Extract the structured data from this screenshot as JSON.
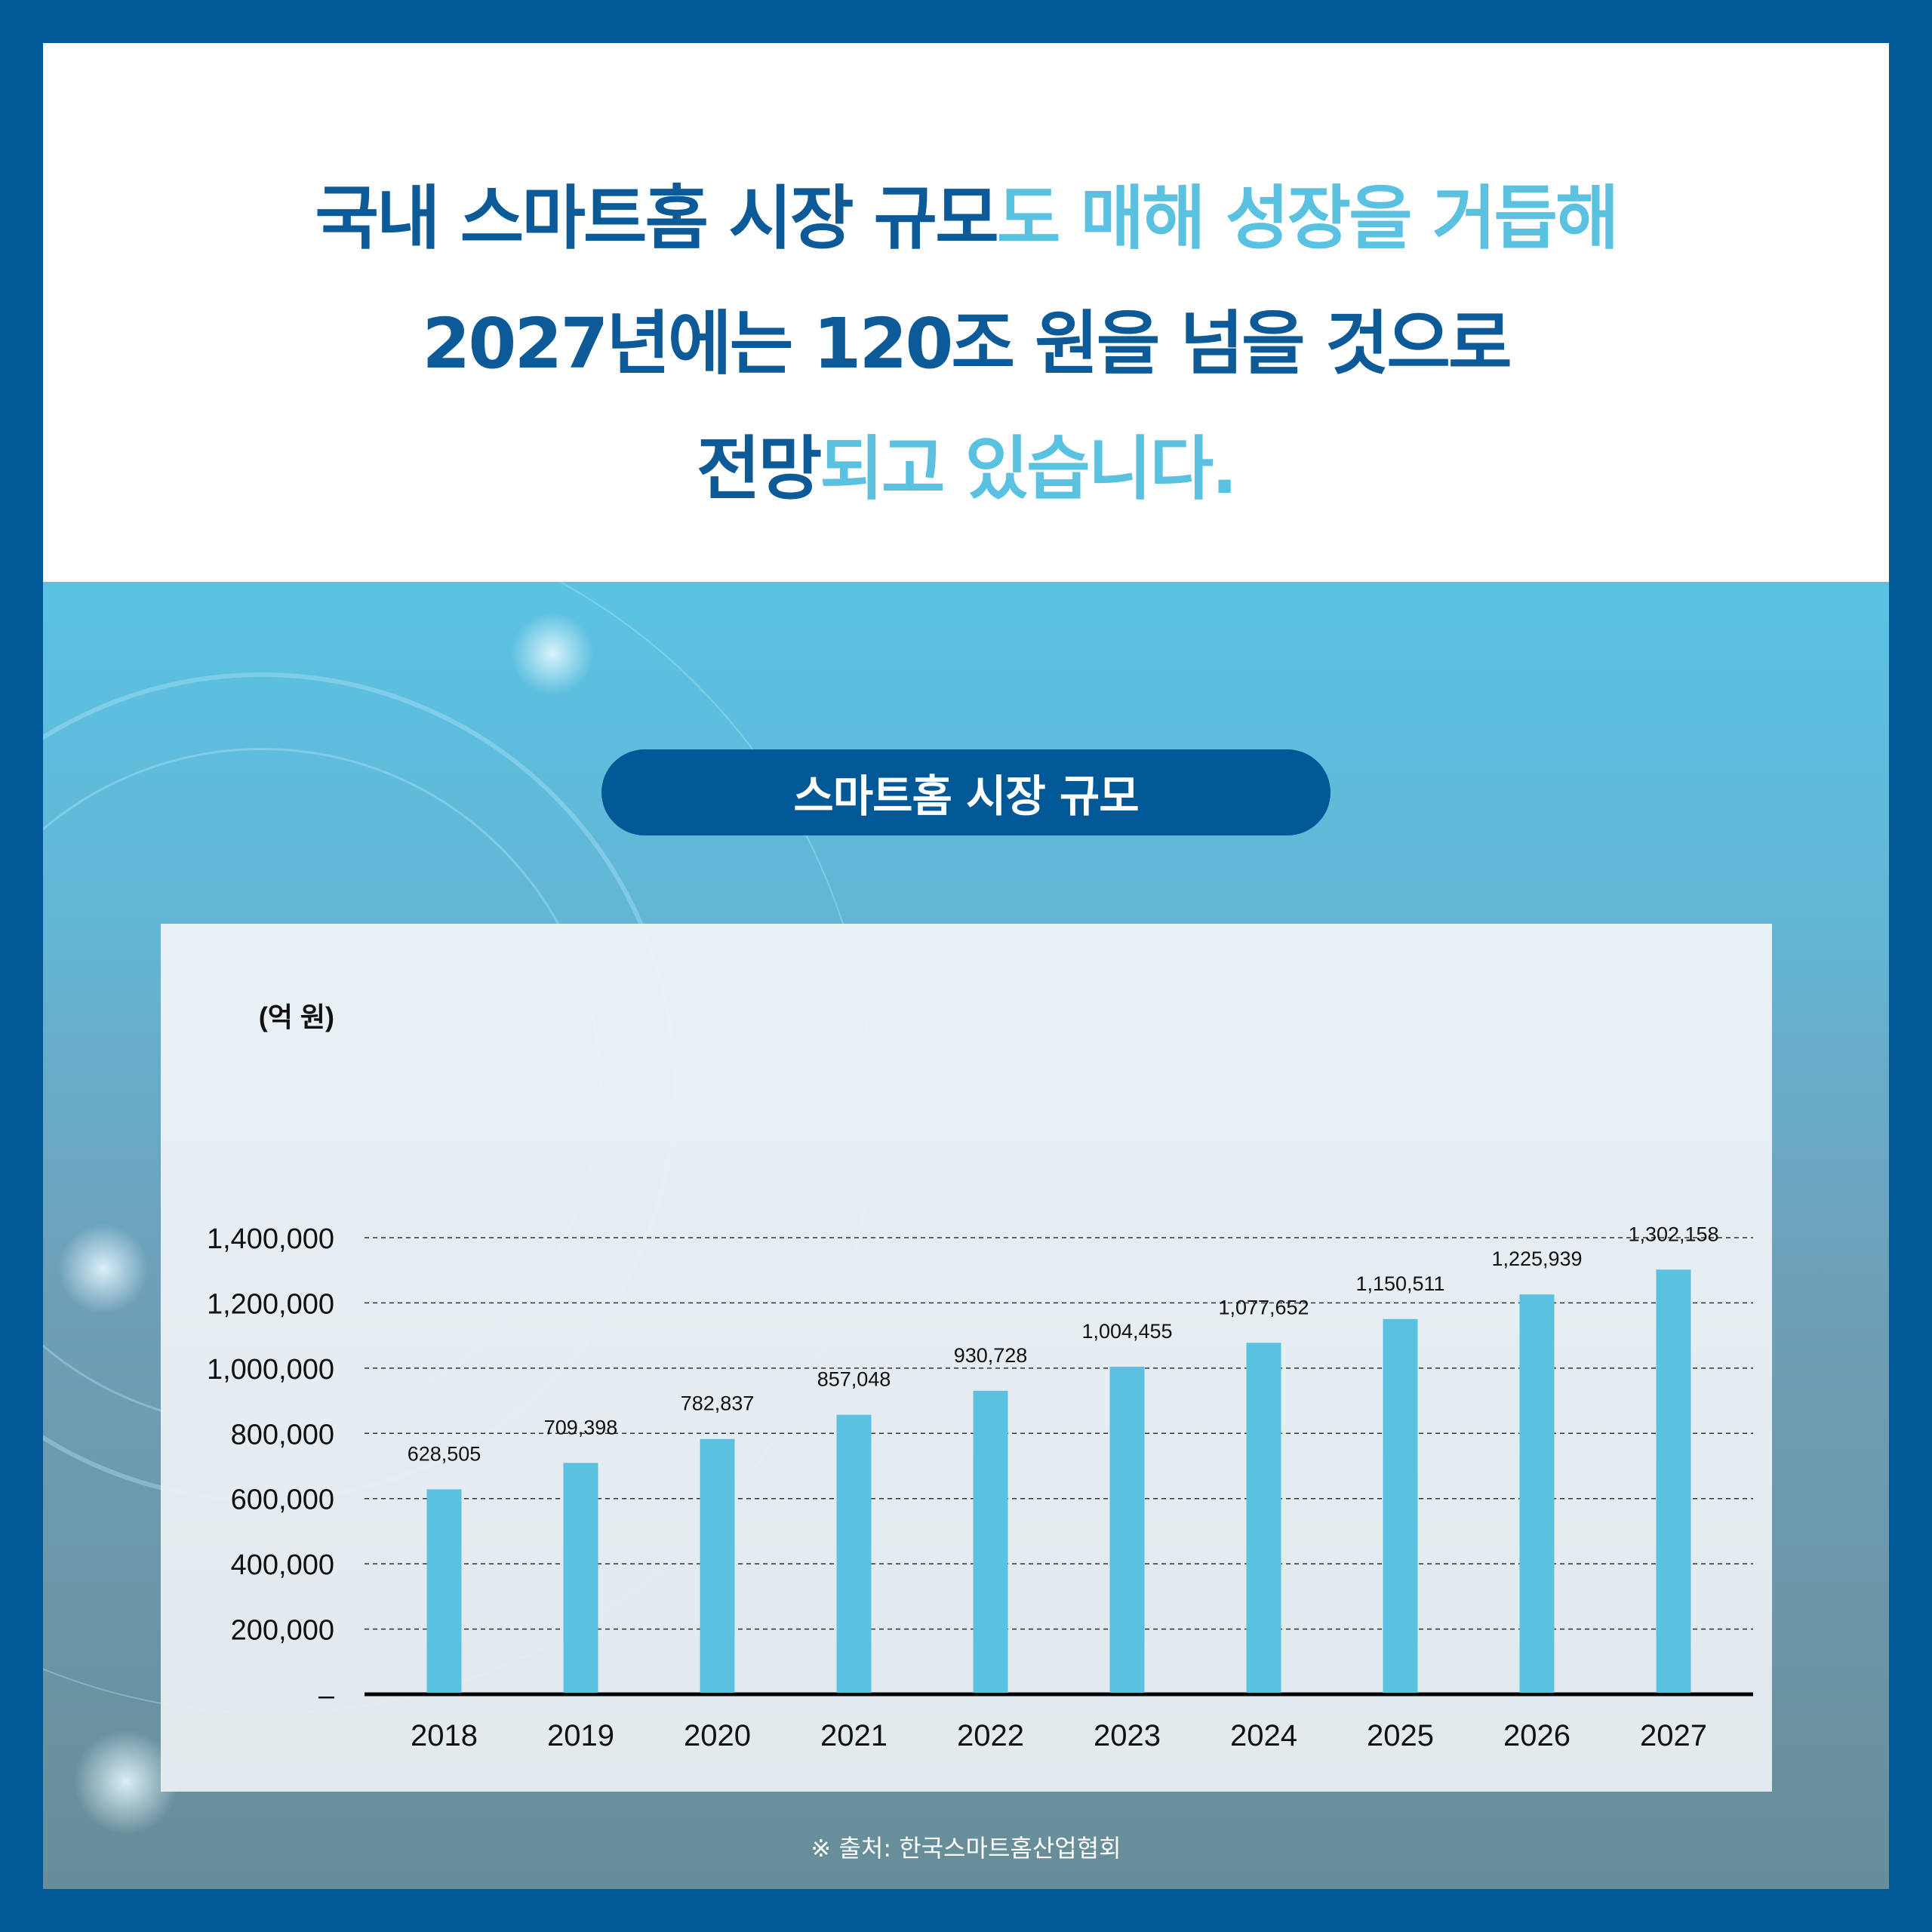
{
  "headline": {
    "line1_dark": "국내 스마트홈 시장 규모",
    "line1_light": "도 매해 성장을 거듭해",
    "line2_dark": "2027년에는 120조 원을 넘을 것으로",
    "line3_dark": "전망",
    "line3_light": "되고 있습니다."
  },
  "colors": {
    "dark_blue": "#0c5a97",
    "light_blue": "#5bc1e1",
    "bar": "#5bc1e1"
  },
  "chart_data": {
    "type": "bar",
    "title": "스마트홈 시장 규모",
    "unit_label": "(억 원)",
    "categories": [
      "2018",
      "2019",
      "2020",
      "2021",
      "2022",
      "2023",
      "2024",
      "2025",
      "2026",
      "2027"
    ],
    "values": [
      628505,
      709398,
      782837,
      857048,
      930728,
      1004455,
      1077652,
      1150511,
      1225939,
      1302158
    ],
    "value_labels": [
      "628,505",
      "709,398",
      "782,837",
      "857,048",
      "930,728",
      "1,004,455",
      "1,077,652",
      "1,150,511",
      "1,225,939",
      "1,302,158"
    ],
    "y_ticks": [
      0,
      200000,
      400000,
      600000,
      800000,
      1000000,
      1200000,
      1400000
    ],
    "y_tick_labels": [
      "–",
      "200,000",
      "400,000",
      "600,000",
      "800,000",
      "1,000,000",
      "1,200,000",
      "1,400,000"
    ],
    "ylim": [
      0,
      1400000
    ],
    "grid": "dashed horizontal",
    "legend": "none"
  },
  "source": "※ 출처: 한국스마트홈산업협회"
}
